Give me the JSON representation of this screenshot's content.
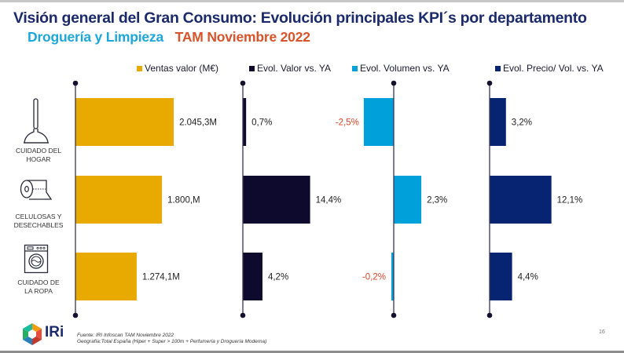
{
  "title": "Visión general del Gran Consumo: Evolución principales KPI´s por departamento",
  "subtitle": {
    "department": "Droguería y Limpieza",
    "period": "TAM Noviembre 2022"
  },
  "categories": [
    {
      "label": "CUIDADO DEL HOGAR",
      "label_lines": [
        "CUIDADO DEL",
        "HOGAR"
      ],
      "icon": "plunger-icon"
    },
    {
      "label": "CELULOSAS Y DESECHABLES",
      "label_lines": [
        "CELULOSAS Y",
        "DESECHABLES"
      ],
      "icon": "toilet-paper-icon"
    },
    {
      "label": "CUIDADO DE LA ROPA",
      "label_lines": [
        "CUIDADO DE",
        "LA ROPA"
      ],
      "icon": "washing-machine-icon"
    }
  ],
  "chart_data": {
    "type": "bar",
    "orientation": "horizontal",
    "categories": [
      "CUIDADO DEL HOGAR",
      "CELULOSAS Y DESECHABLES",
      "CUIDADO DE LA ROPA"
    ],
    "series": [
      {
        "key": "ventas",
        "name": "Ventas valor (M€)",
        "color": "#e8a900",
        "values": [
          2045.3,
          1800.0,
          1274.1
        ],
        "labels": [
          "2.045,3M",
          "1.800,M",
          "1.274,1M"
        ],
        "unit": "M€",
        "axis_max": 2600
      },
      {
        "key": "valor",
        "name": "Evol. Valor vs. YA",
        "color": "#0e0a2e",
        "values": [
          0.7,
          14.4,
          4.2
        ],
        "labels": [
          "0,7%",
          "14,4%",
          "4,2%"
        ],
        "unit": "%",
        "axis_max": 18
      },
      {
        "key": "volumen",
        "name": "Evol. Volumen vs. YA",
        "color": "#00a0db",
        "values": [
          -2.5,
          2.3,
          -0.2
        ],
        "labels": [
          "-2,5%",
          "2,3%",
          "-0,2%"
        ],
        "unit": "%",
        "axis_max": 4
      },
      {
        "key": "precio",
        "name": "Evol. Precio/ Vol. vs. YA",
        "color": "#062471",
        "values": [
          3.2,
          12.1,
          4.4
        ],
        "labels": [
          "3,2%",
          "12,1%",
          "4,4%"
        ],
        "unit": "%",
        "axis_max": 16
      }
    ],
    "negative_label_color": "#e0452a",
    "legend": "top",
    "grid": false
  },
  "footer": {
    "source": "Fuente: IRI Infoscan TAM Noviembre 2022",
    "geography": "Geografía:Total España (Hiper + Super > 100m + Perfumería y Droguería Moderna)",
    "logo_text": "IRi",
    "page_number": "16"
  },
  "colors": {
    "title": "#1b2a6b",
    "department": "#1da6d9",
    "period": "#d9532a"
  }
}
